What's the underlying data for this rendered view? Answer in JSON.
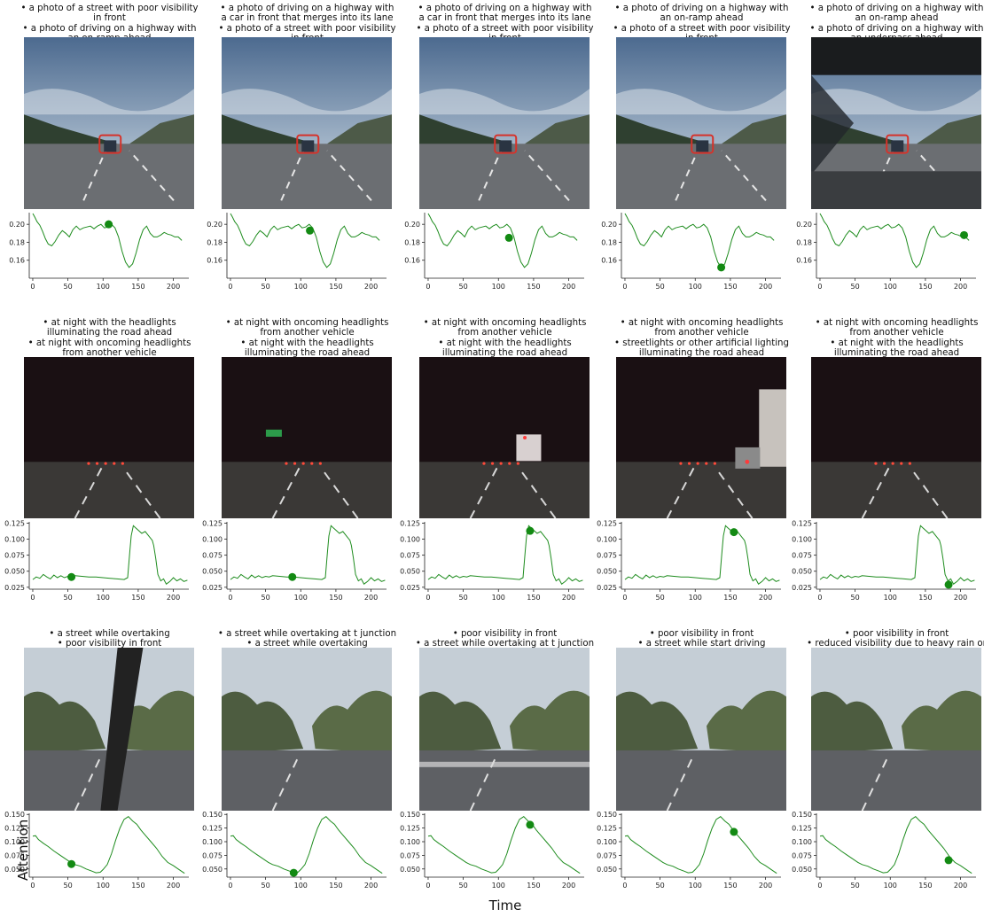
{
  "axes": {
    "xlabel": "Time",
    "ylabel": "Attention"
  },
  "colors": {
    "line": "#1e8c1e",
    "marker": "#138a13",
    "box": "#d6322a"
  },
  "rows": [
    {
      "scene": "day-highway",
      "panels": [
        {
          "caption": [
            "• a photo of a street with poor visibility in front",
            "• a photo of driving on a highway with an on-ramp ahead"
          ],
          "box": true
        },
        {
          "caption": [
            "• a photo of driving on a highway with a car in front that merges into its lane",
            "• a photo of a street with poor visibility in front"
          ],
          "box": true
        },
        {
          "caption": [
            "• a photo of driving on a highway with a car in front that merges into its lane",
            "• a photo of a street with poor visibility in front"
          ],
          "box": true
        },
        {
          "caption": [
            "• a photo of driving on a highway with an on-ramp ahead",
            "• a photo of a street with poor visibility in front"
          ],
          "box": true
        },
        {
          "caption": [
            "• a photo of driving on a highway with an on-ramp ahead",
            "• a photo of driving on a highway with an underpass ahead"
          ],
          "box": true,
          "underpass": true
        }
      ]
    },
    {
      "scene": "night",
      "panels": [
        {
          "caption": [
            "• at night with the headlights illuminating the road ahead",
            "• at night with oncoming headlights from another vehicle"
          ]
        },
        {
          "caption": [
            "• at night with oncoming headlights from another vehicle",
            "• at night with the headlights illuminating the road ahead"
          ],
          "sign": true
        },
        {
          "caption": [
            "• at night with oncoming headlights from another vehicle",
            "• at night with the headlights illuminating the road ahead"
          ],
          "truck": true
        },
        {
          "caption": [
            "• at night with oncoming headlights from another vehicle",
            "• streetlights or other artificial lighting illuminating the road ahead"
          ],
          "truck_right": true
        },
        {
          "caption": [
            "• at night with oncoming headlights from another vehicle",
            "• at night with the headlights illuminating the road ahead"
          ]
        }
      ]
    },
    {
      "scene": "suburban",
      "panels": [
        {
          "caption": [
            "• a street while overtaking",
            "• poor visibility in front"
          ],
          "wiper": true
        },
        {
          "caption": [
            "• a street while overtaking at t junction",
            "• a street while overtaking"
          ]
        },
        {
          "caption": [
            "• poor visibility in front",
            "• a street while overtaking at t junction"
          ],
          "crosswalk": true
        },
        {
          "caption": [
            "• poor visibility in front",
            "• a street while start driving"
          ]
        },
        {
          "caption": [
            "• poor visibility in front",
            "• reduced visibility due to heavy rain or snow in daylight"
          ]
        }
      ]
    }
  ],
  "chart_data": [
    {
      "type": "line",
      "row": 1,
      "title": "",
      "xlabel": "",
      "ylabel": "",
      "xlim": [
        -5,
        222
      ],
      "ylim": [
        0.14,
        0.213
      ],
      "xticks": [
        0,
        50,
        100,
        150,
        200
      ],
      "yticks": [
        0.16,
        0.18,
        0.2
      ],
      "ytick_labels": [
        "0.16",
        "0.18",
        "0.20"
      ],
      "x": [
        0,
        3,
        6,
        10,
        14,
        18,
        22,
        27,
        32,
        37,
        42,
        47,
        52,
        57,
        62,
        67,
        72,
        77,
        82,
        87,
        92,
        97,
        102,
        107,
        112,
        117,
        122,
        127,
        132,
        137,
        142,
        147,
        152,
        157,
        162,
        167,
        172,
        177,
        182,
        187,
        192,
        197,
        202,
        207,
        212
      ],
      "y": [
        0.212,
        0.208,
        0.203,
        0.199,
        0.192,
        0.184,
        0.178,
        0.176,
        0.181,
        0.188,
        0.193,
        0.19,
        0.186,
        0.194,
        0.198,
        0.194,
        0.196,
        0.197,
        0.198,
        0.195,
        0.198,
        0.2,
        0.196,
        0.197,
        0.2,
        0.196,
        0.186,
        0.17,
        0.158,
        0.152,
        0.156,
        0.168,
        0.183,
        0.194,
        0.198,
        0.19,
        0.186,
        0.186,
        0.188,
        0.191,
        0.189,
        0.188,
        0.186,
        0.186,
        0.182
      ],
      "markers_x": [
        108,
        113,
        115,
        137,
        205
      ],
      "markers_y": [
        0.2,
        0.193,
        0.185,
        0.152,
        0.188
      ]
    },
    {
      "type": "line",
      "row": 2,
      "title": "",
      "xlabel": "",
      "ylabel": "",
      "xlim": [
        -5,
        222
      ],
      "ylim": [
        0.022,
        0.127
      ],
      "xticks": [
        0,
        50,
        100,
        150,
        200
      ],
      "yticks": [
        0.025,
        0.05,
        0.075,
        0.1,
        0.125
      ],
      "ytick_labels": [
        "0.025",
        "0.050",
        "0.075",
        "0.100",
        "0.125"
      ],
      "x": [
        0,
        5,
        10,
        15,
        20,
        25,
        30,
        35,
        40,
        45,
        50,
        55,
        60,
        70,
        80,
        90,
        100,
        110,
        120,
        130,
        135,
        138,
        140,
        143,
        146,
        150,
        155,
        160,
        165,
        170,
        172,
        175,
        178,
        182,
        186,
        190,
        195,
        200,
        205,
        210,
        215,
        220
      ],
      "y": [
        0.037,
        0.041,
        0.039,
        0.045,
        0.041,
        0.038,
        0.044,
        0.04,
        0.043,
        0.04,
        0.042,
        0.041,
        0.043,
        0.042,
        0.041,
        0.041,
        0.04,
        0.039,
        0.038,
        0.037,
        0.04,
        0.08,
        0.105,
        0.121,
        0.118,
        0.114,
        0.109,
        0.112,
        0.105,
        0.098,
        0.09,
        0.07,
        0.045,
        0.035,
        0.038,
        0.03,
        0.034,
        0.04,
        0.035,
        0.038,
        0.034,
        0.036
      ],
      "markers_x": [
        55,
        88,
        145,
        155,
        183
      ],
      "markers_y": [
        0.041,
        0.041,
        0.113,
        0.111,
        0.029
      ]
    },
    {
      "type": "line",
      "row": 3,
      "title": "",
      "xlabel": "",
      "ylabel": "",
      "xlim": [
        -5,
        222
      ],
      "ylim": [
        0.035,
        0.152
      ],
      "xticks": [
        0,
        50,
        100,
        150,
        200
      ],
      "yticks": [
        0.05,
        0.075,
        0.1,
        0.125,
        0.15
      ],
      "ytick_labels": [
        "0.050",
        "0.075",
        "0.100",
        "0.125",
        "0.150"
      ],
      "x": [
        0,
        4,
        8,
        15,
        22,
        30,
        38,
        46,
        54,
        60,
        68,
        76,
        84,
        90,
        96,
        100,
        106,
        112,
        118,
        124,
        130,
        136,
        142,
        148,
        154,
        160,
        168,
        176,
        184,
        192,
        200,
        208,
        216
      ],
      "y": [
        0.11,
        0.111,
        0.104,
        0.097,
        0.091,
        0.083,
        0.076,
        0.069,
        0.062,
        0.058,
        0.055,
        0.05,
        0.046,
        0.043,
        0.044,
        0.049,
        0.058,
        0.078,
        0.103,
        0.125,
        0.141,
        0.146,
        0.138,
        0.132,
        0.121,
        0.112,
        0.1,
        0.088,
        0.073,
        0.062,
        0.056,
        0.049,
        0.042
      ],
      "markers_x": [
        55,
        90,
        145,
        155,
        183
      ],
      "markers_y": [
        0.059,
        0.043,
        0.131,
        0.118,
        0.066
      ]
    }
  ]
}
